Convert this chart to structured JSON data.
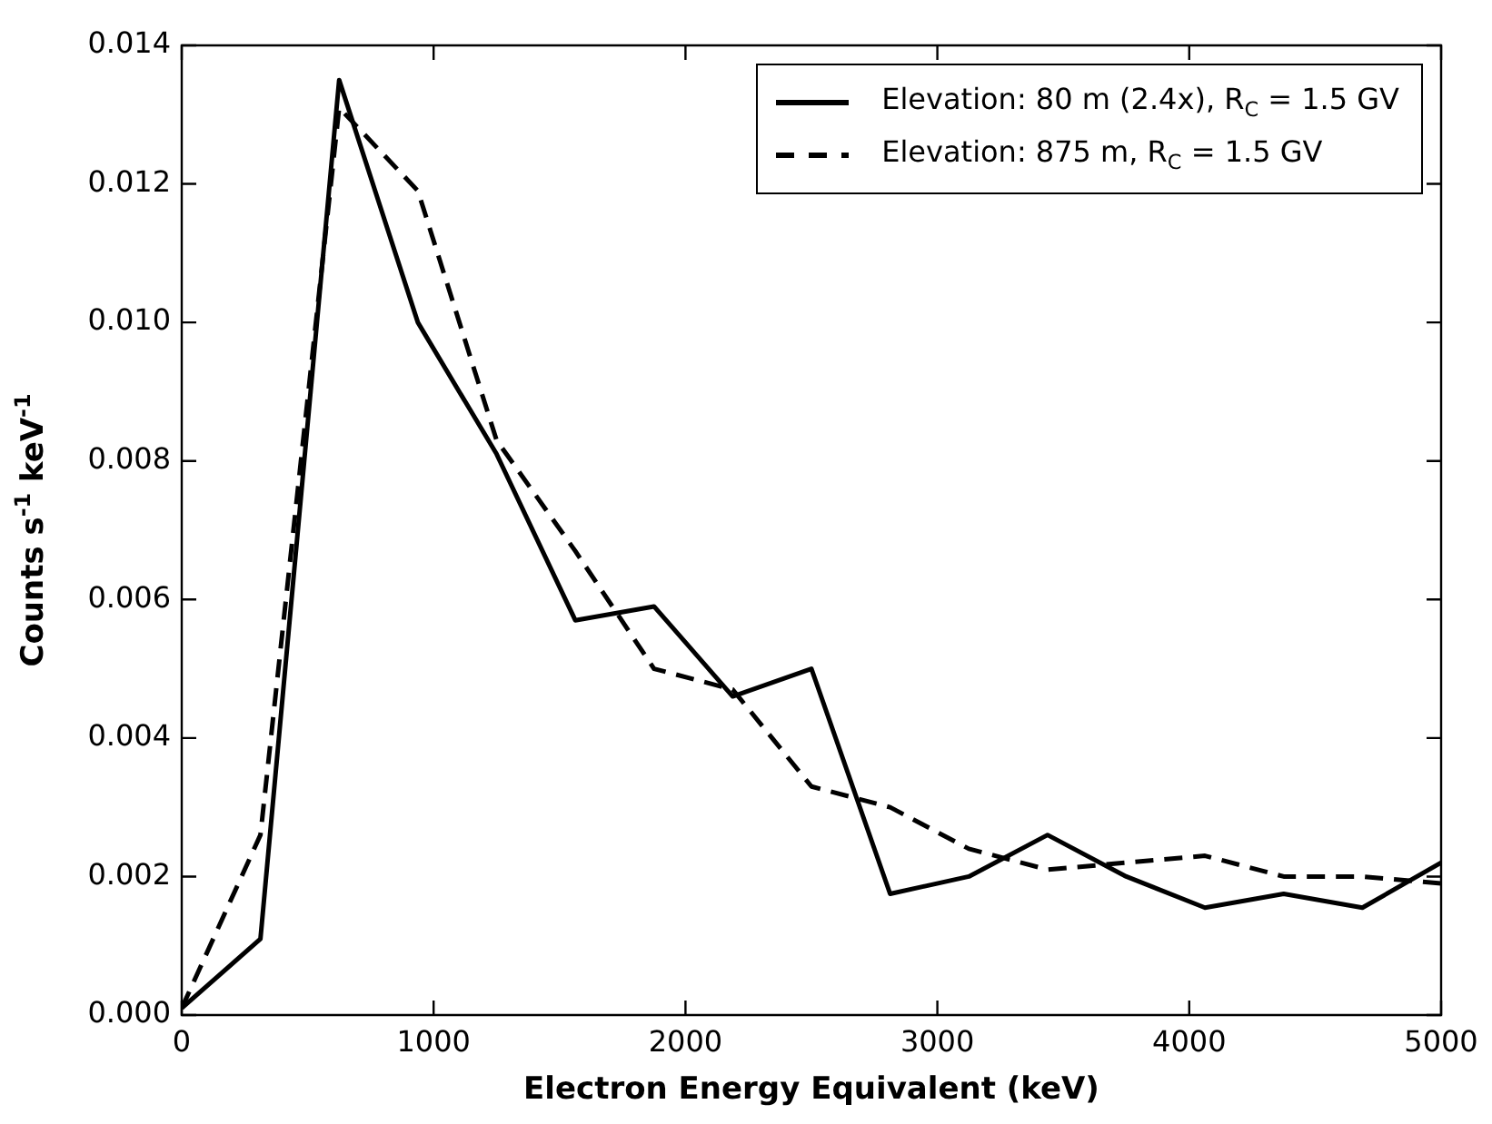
{
  "chart_data": {
    "type": "line",
    "xlabel": "Electron Energy Equivalent (keV)",
    "ylabel": "Counts s$^{-1}$ keV$^{-1}$",
    "x": [
      0,
      312.5,
      625,
      937.5,
      1250,
      1562.5,
      1875,
      2187.5,
      2500,
      2812.5,
      3125,
      3437.5,
      3750,
      4062.5,
      4375,
      4687.5,
      5000
    ],
    "series": [
      {
        "name": "Elevation: 80 m (2.4x), R$_{C}$ = 1.5 GV",
        "color": "#000000",
        "line_style": "solid",
        "values": [
          0.0001,
          0.0011,
          0.0135,
          0.01,
          0.0081,
          0.0057,
          0.0059,
          0.0046,
          0.005,
          0.00175,
          0.002,
          0.0026,
          0.002,
          0.00155,
          0.00175,
          0.00155,
          0.0022
        ]
      },
      {
        "name": "Elevation: 875 m, R$_{C}$ = 1.5 GV",
        "color": "#000000",
        "line_style": "dashed",
        "values": [
          0.0001,
          0.0026,
          0.0131,
          0.0119,
          0.0083,
          0.0067,
          0.005,
          0.0047,
          0.0033,
          0.003,
          0.0024,
          0.0021,
          0.0022,
          0.0023,
          0.002,
          0.002,
          0.0019
        ]
      }
    ],
    "xlim": [
      0,
      5000
    ],
    "xticks": [
      0,
      1000,
      2000,
      3000,
      4000,
      5000
    ],
    "ylim": [
      0,
      0.014
    ],
    "yticks": [
      {
        "value": 0,
        "label": "0.000"
      },
      {
        "value": 0.002,
        "label": "0.002"
      },
      {
        "value": 0.004,
        "label": "0.004"
      },
      {
        "value": 0.006,
        "label": "0.006"
      },
      {
        "value": 0.008,
        "label": "0.008"
      },
      {
        "value": 0.01,
        "label": "0.010"
      },
      {
        "value": 0.012,
        "label": "0.012"
      },
      {
        "value": 0.014,
        "label": "0.014"
      }
    ],
    "grid": false,
    "legend": "top right",
    "marker": "none"
  }
}
